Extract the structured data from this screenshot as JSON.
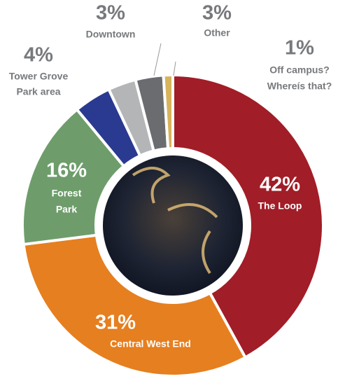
{
  "chart_data": {
    "type": "donut",
    "categories": [
      [
        "The Loop"
      ],
      [
        "Central West End"
      ],
      [
        "Forest",
        "Park"
      ],
      [
        "Tower Grove",
        "Park area"
      ],
      [
        "Downtown"
      ],
      [
        "Other"
      ],
      [
        "Off campus?",
        "Whereís that?"
      ]
    ],
    "values": [
      42,
      31,
      16,
      4,
      3,
      3,
      1
    ],
    "value_labels": [
      "42%",
      "31%",
      "16%",
      "4%",
      "3%",
      "3%",
      "1%"
    ],
    "colors": [
      "#a11d27",
      "#e67f1f",
      "#6e9d6b",
      "#2a3a90",
      "#b3b5b7",
      "#6a6c70",
      "#d7b35c"
    ]
  }
}
